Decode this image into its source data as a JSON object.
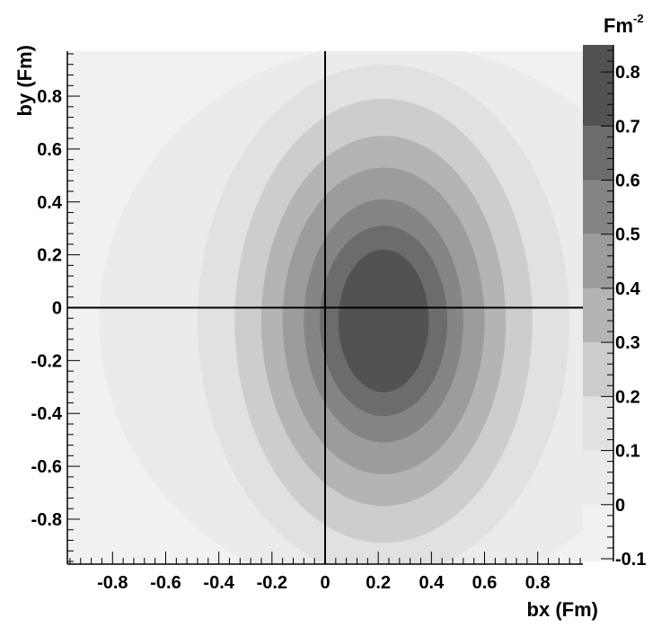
{
  "chart_data": {
    "type": "heatmap",
    "xlabel": "bx (Fm)",
    "ylabel": "by (Fm)",
    "colorbar_label": "Fm",
    "colorbar_label_exponent": "-2",
    "xlim": [
      -0.97,
      0.97
    ],
    "ylim": [
      -0.97,
      0.97
    ],
    "x_ticks": [
      -0.8,
      -0.6,
      -0.4,
      -0.2,
      0,
      0.2,
      0.4,
      0.6,
      0.8
    ],
    "x_tick_labels": [
      "-0.8",
      "-0.6",
      "-0.4",
      "-0.2",
      "0",
      "0.2",
      "0.4",
      "0.6",
      "0.8"
    ],
    "y_ticks": [
      -0.8,
      -0.6,
      -0.4,
      -0.2,
      0,
      0.2,
      0.4,
      0.6,
      0.8
    ],
    "y_tick_labels": [
      "-0.8",
      "-0.6",
      "-0.4",
      "-0.2",
      "0",
      "0.2",
      "0.4",
      "0.6",
      "0.8"
    ],
    "colorbar_ticks": [
      -0.1,
      0,
      0.1,
      0.2,
      0.3,
      0.4,
      0.5,
      0.6,
      0.7,
      0.8
    ],
    "colorbar_tick_labels": [
      "-0.1",
      "0",
      "0.1",
      "0.2",
      "0.3",
      "0.4",
      "0.5",
      "0.6",
      "0.7",
      "0.8"
    ],
    "colorbar_range": [
      -0.105,
      0.85
    ],
    "levels": [
      {
        "min": -0.105,
        "max": 0.0,
        "color": "#f1f1f1"
      },
      {
        "min": 0.0,
        "max": 0.1,
        "color": "#ebebeb"
      },
      {
        "min": 0.1,
        "max": 0.2,
        "color": "#e1e1e1"
      },
      {
        "min": 0.2,
        "max": 0.3,
        "color": "#cdcdcd"
      },
      {
        "min": 0.3,
        "max": 0.4,
        "color": "#b4b4b4"
      },
      {
        "min": 0.4,
        "max": 0.5,
        "color": "#9c9c9c"
      },
      {
        "min": 0.5,
        "max": 0.6,
        "color": "#858585"
      },
      {
        "min": 0.6,
        "max": 0.7,
        "color": "#6c6c6c"
      },
      {
        "min": 0.7,
        "max": 0.85,
        "color": "#525252"
      }
    ],
    "contours": [
      {
        "level": 0.0,
        "center": [
          0.25,
          -0.05
        ],
        "rx": 1.1,
        "ry": 1.05
      },
      {
        "level": 0.1,
        "center": [
          0.22,
          -0.05
        ],
        "rx": 0.7,
        "ry": 0.97
      },
      {
        "level": 0.2,
        "center": [
          0.22,
          -0.05
        ],
        "rx": 0.56,
        "ry": 0.84
      },
      {
        "level": 0.3,
        "center": [
          0.22,
          -0.05
        ],
        "rx": 0.46,
        "ry": 0.7
      },
      {
        "level": 0.4,
        "center": [
          0.22,
          -0.05
        ],
        "rx": 0.38,
        "ry": 0.58
      },
      {
        "level": 0.5,
        "center": [
          0.22,
          -0.05
        ],
        "rx": 0.3,
        "ry": 0.46
      },
      {
        "level": 0.6,
        "center": [
          0.22,
          -0.05
        ],
        "rx": 0.24,
        "ry": 0.36
      },
      {
        "level": 0.7,
        "center": [
          0.22,
          -0.05
        ],
        "rx": 0.17,
        "ry": 0.27
      }
    ],
    "crosshair": {
      "x": 0,
      "y": 0
    },
    "grid": false,
    "colorbar_position": "right"
  }
}
